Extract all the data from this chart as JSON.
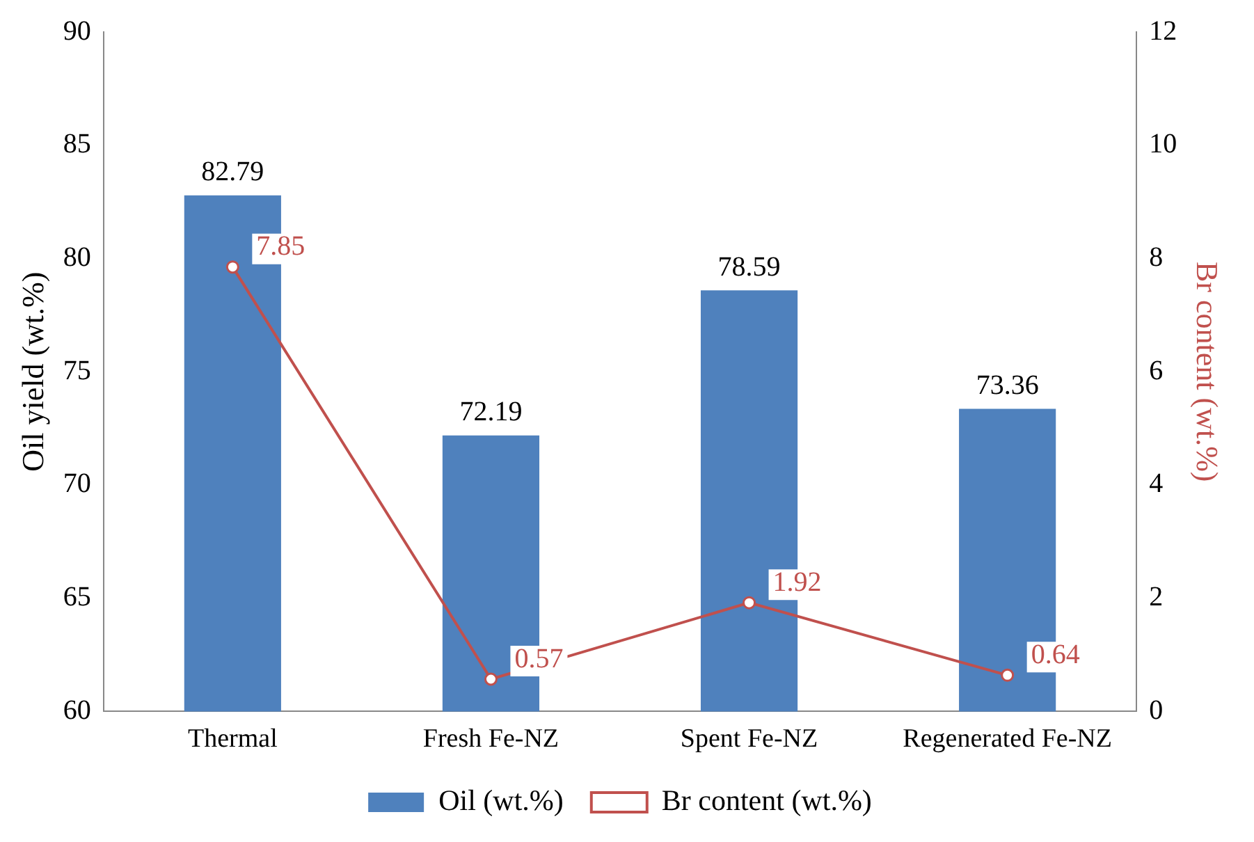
{
  "chart_data": {
    "type": "bar",
    "categories": [
      "Thermal",
      "Fresh Fe-NZ",
      "Spent Fe-NZ",
      "Regenerated Fe-NZ"
    ],
    "ylabel": "Oil yield (wt.%)",
    "y2label": "Br content (wt.%)",
    "ylim": [
      60,
      90
    ],
    "yticks": [
      60,
      65,
      70,
      75,
      80,
      85,
      90
    ],
    "y2lim": [
      0,
      12
    ],
    "y2ticks": [
      0,
      2,
      4,
      6,
      8,
      10,
      12
    ],
    "series": [
      {
        "name": "Oil (wt.%)",
        "color": "#4f81bd",
        "values": [
          82.79,
          72.19,
          78.59,
          73.36
        ]
      },
      {
        "name": "Br content (wt.%)",
        "type": "line",
        "axis": "y2",
        "color": "#c0504d",
        "marker": "circle",
        "values": [
          7.85,
          0.57,
          1.92,
          0.64
        ]
      }
    ],
    "data_labels": true,
    "legend": "bottom"
  }
}
